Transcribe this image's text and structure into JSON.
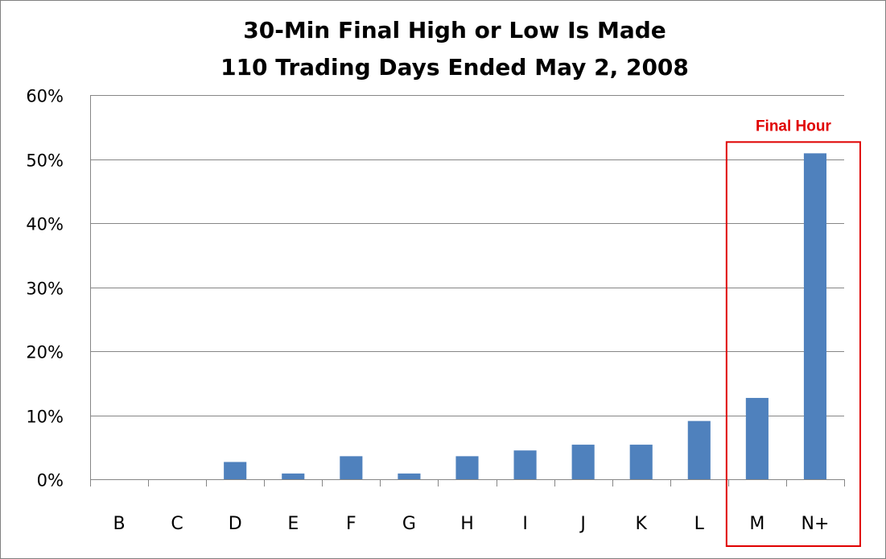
{
  "chart_data": {
    "type": "bar",
    "title": [
      "30-Min Final High or Low Is Made",
      "110 Trading Days Ended May 2, 2008"
    ],
    "xlabel": "",
    "ylabel": "",
    "categories": [
      "B",
      "C",
      "D",
      "E",
      "F",
      "G",
      "H",
      "I",
      "J",
      "K",
      "L",
      "M",
      "N+"
    ],
    "values": [
      0,
      0,
      2.7,
      0.9,
      3.6,
      0.9,
      3.6,
      4.5,
      5.4,
      5.4,
      9.1,
      12.7,
      50.9
    ],
    "ylim": [
      0,
      60
    ],
    "yticks": [
      0,
      10,
      20,
      30,
      40,
      50,
      60
    ],
    "ytick_labels": [
      "0%",
      "10%",
      "20%",
      "30%",
      "40%",
      "50%",
      "60%"
    ],
    "grid": true,
    "legend": "none",
    "annotation": {
      "label": "Final Hour",
      "covers_categories": [
        "M",
        "N+"
      ]
    },
    "colors": {
      "bar": "#4F81BD",
      "grid": "#868686",
      "axis": "#868686",
      "annotation": "#E00000"
    }
  }
}
